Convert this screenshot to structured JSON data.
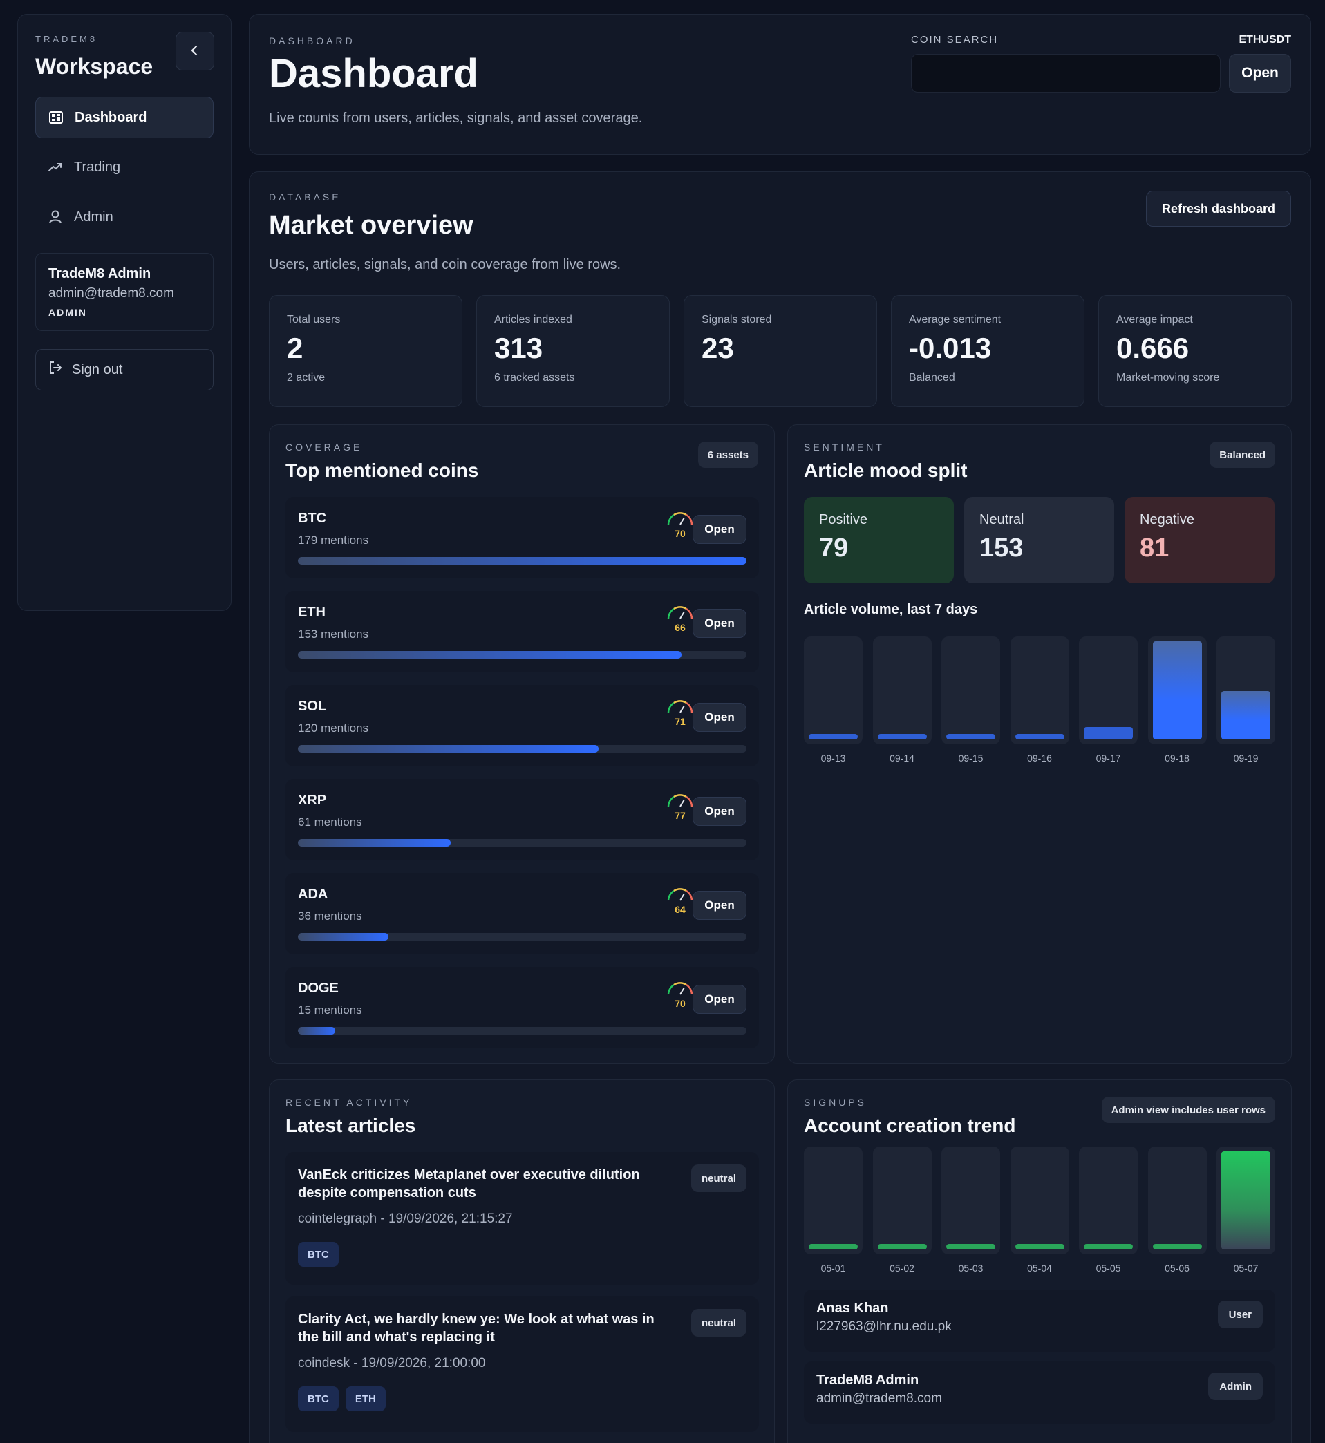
{
  "sidebar": {
    "brand": "TRADEM8",
    "title": "Workspace",
    "nav": [
      {
        "label": "Dashboard",
        "icon": "dashboard-icon"
      },
      {
        "label": "Trading",
        "icon": "trend-up-icon"
      },
      {
        "label": "Admin",
        "icon": "user-icon"
      }
    ],
    "user": {
      "name": "TradeM8 Admin",
      "email": "admin@tradem8.com",
      "role": "ADMIN"
    },
    "signout_label": "Sign out"
  },
  "header": {
    "eyebrow": "DASHBOARD",
    "title": "Dashboard",
    "subtitle": "Live counts from users, articles, signals, and asset coverage.",
    "search_label": "COIN SEARCH",
    "search_symbol": "ETHUSDT",
    "search_value": "",
    "open_label": "Open"
  },
  "overview": {
    "eyebrow": "DATABASE",
    "title": "Market overview",
    "subtitle": "Users, articles, signals, and coin coverage from live rows.",
    "refresh_label": "Refresh dashboard",
    "stats": [
      {
        "label": "Total users",
        "value": "2",
        "note": "2 active"
      },
      {
        "label": "Articles indexed",
        "value": "313",
        "note": "6 tracked assets"
      },
      {
        "label": "Signals stored",
        "value": "23",
        "note": ""
      },
      {
        "label": "Average sentiment",
        "value": "-0.013",
        "note": "Balanced"
      },
      {
        "label": "Average impact",
        "value": "0.666",
        "note": "Market-moving score"
      }
    ]
  },
  "coverage": {
    "eyebrow": "COVERAGE",
    "title": "Top mentioned coins",
    "badge": "6 assets",
    "open_label": "Open",
    "max_mentions": 179,
    "coins": [
      {
        "symbol": "BTC",
        "mentions_text": "179 mentions",
        "mentions": 179,
        "score": "70"
      },
      {
        "symbol": "ETH",
        "mentions_text": "153 mentions",
        "mentions": 153,
        "score": "66"
      },
      {
        "symbol": "SOL",
        "mentions_text": "120 mentions",
        "mentions": 120,
        "score": "71"
      },
      {
        "symbol": "XRP",
        "mentions_text": "61 mentions",
        "mentions": 61,
        "score": "77"
      },
      {
        "symbol": "ADA",
        "mentions_text": "36 mentions",
        "mentions": 36,
        "score": "64"
      },
      {
        "symbol": "DOGE",
        "mentions_text": "15 mentions",
        "mentions": 15,
        "score": "70"
      }
    ]
  },
  "sentiment": {
    "eyebrow": "SENTIMENT",
    "title": "Article mood split",
    "badge": "Balanced",
    "moods": [
      {
        "label": "Positive",
        "value": "79",
        "bg": "#1b3a2c",
        "color": "#e9eef5"
      },
      {
        "label": "Neutral",
        "value": "153",
        "bg": "#242b3b",
        "color": "#e9eef5"
      },
      {
        "label": "Negative",
        "value": "81",
        "bg": "#3a242b",
        "color": "#f3b3b3"
      }
    ],
    "volume_label": "Article volume, last 7 days",
    "volume": {
      "days": [
        "09-13",
        "09-14",
        "09-15",
        "09-16",
        "09-17",
        "09-18",
        "09-19"
      ],
      "values": [
        0.04,
        0.04,
        0.04,
        0.04,
        0.13,
        1.0,
        0.49
      ]
    }
  },
  "articles": {
    "eyebrow": "RECENT ACTIVITY",
    "title": "Latest articles",
    "items": [
      {
        "title": "VanEck criticizes Metaplanet over executive dilution despite compensation cuts",
        "meta": "cointelegraph - 19/09/2026, 21:15:27",
        "sentiment": "neutral",
        "tags": [
          "BTC"
        ]
      },
      {
        "title": "Clarity Act, we hardly knew ye: We look at what was in the bill and what's replacing it",
        "meta": "coindesk - 19/09/2026, 21:00:00",
        "sentiment": "neutral",
        "tags": [
          "BTC",
          "ETH"
        ]
      }
    ]
  },
  "signups": {
    "eyebrow": "SIGNUPS",
    "title": "Account creation trend",
    "badge": "Admin view includes user rows",
    "trend": {
      "days": [
        "05-01",
        "05-02",
        "05-03",
        "05-04",
        "05-05",
        "05-06",
        "05-07"
      ],
      "values": [
        0.05,
        0.05,
        0.05,
        0.05,
        0.05,
        0.05,
        1.0
      ]
    },
    "accounts": [
      {
        "name": "Anas Khan",
        "email": "l227963@lhr.nu.edu.pk",
        "role": "User"
      },
      {
        "name": "TradeM8 Admin",
        "email": "admin@tradem8.com",
        "role": "Admin"
      }
    ]
  },
  "colors": {
    "accent_blue": "#2f6bff",
    "accent_green": "#22c55e",
    "gauge_score": "#f1c44a"
  }
}
